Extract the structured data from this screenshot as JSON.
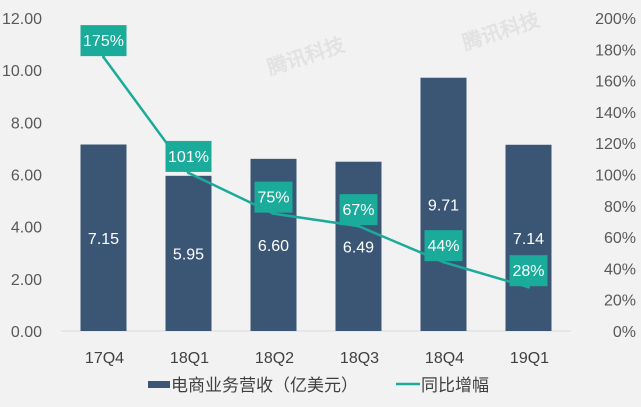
{
  "chart_data": {
    "type": "bar+line",
    "categories": [
      "17Q4",
      "18Q1",
      "18Q2",
      "18Q3",
      "18Q4",
      "19Q1"
    ],
    "series": [
      {
        "name": "电商业务营收（亿美元）",
        "type": "bar",
        "axis": "left",
        "values": [
          7.15,
          5.95,
          6.6,
          6.49,
          9.71,
          7.14
        ],
        "labels": [
          "7.15",
          "5.95",
          "6.60",
          "6.49",
          "9.71",
          "7.14"
        ],
        "color": "#3b5675"
      },
      {
        "name": "同比增幅",
        "type": "line",
        "axis": "right",
        "values": [
          175,
          101,
          75,
          67,
          44,
          28
        ],
        "labels": [
          "175%",
          "101%",
          "75%",
          "67%",
          "44%",
          "28%"
        ],
        "color": "#1aab9b"
      }
    ],
    "left_axis": {
      "ylim": [
        0,
        12
      ],
      "ticks": [
        "0.00",
        "2.00",
        "4.00",
        "6.00",
        "8.00",
        "10.00",
        "12.00"
      ]
    },
    "right_axis": {
      "ylim": [
        0,
        200
      ],
      "ticks": [
        "0%",
        "20%",
        "40%",
        "60%",
        "80%",
        "100%",
        "120%",
        "140%",
        "160%",
        "180%",
        "200%"
      ]
    },
    "grid": false,
    "legend": "bottom",
    "watermark": "腾讯科技"
  }
}
